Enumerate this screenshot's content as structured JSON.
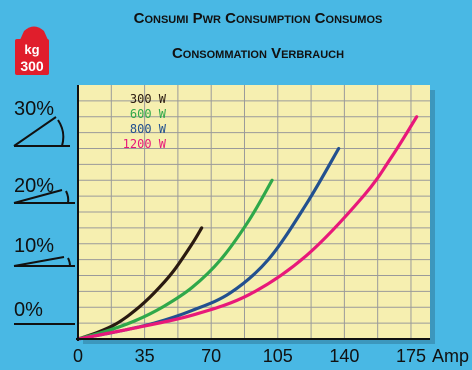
{
  "header": {
    "title_line1": "Consumi  Pwr Consumption  Consumos",
    "title_line2": "Consommation  Verbrauch"
  },
  "badge": {
    "unit": "kg",
    "value": "300"
  },
  "colors": {
    "background": "#49b8e4",
    "plot": "#f6efb0",
    "grid": "#9a9a9a"
  },
  "chart_data": {
    "type": "line",
    "title": "Consumi  Pwr Consumption  Consumos  Consommation  Verbrauch",
    "xlabel": "Amp",
    "ylabel": "",
    "xlim": [
      0,
      185
    ],
    "ylim": [
      0,
      32
    ],
    "x_ticks": [
      "0",
      "35",
      "70",
      "105",
      "140",
      "175"
    ],
    "x_unit": "Amp",
    "y_ticks": [
      "0%",
      "10%",
      "20%",
      "30%"
    ],
    "grid": true,
    "legend_position": "top-left",
    "series": [
      {
        "name": "300  W",
        "color": "#2a1a10",
        "x": [
          0,
          10,
          20,
          30,
          40,
          50,
          60,
          65
        ],
        "y": [
          0,
          0.8,
          1.9,
          3.6,
          5.8,
          8.5,
          12,
          14
        ]
      },
      {
        "name": "600  W",
        "color": "#2fa84a",
        "x": [
          0,
          15,
          30,
          45,
          60,
          75,
          90,
          102
        ],
        "y": [
          0,
          1,
          2.3,
          4.1,
          6.5,
          10,
          15,
          20
        ]
      },
      {
        "name": "800  W",
        "color": "#22508f",
        "x": [
          0,
          20,
          40,
          60,
          80,
          100,
          120,
          137
        ],
        "y": [
          0,
          0.9,
          2,
          3.6,
          5.8,
          10,
          17,
          24
        ]
      },
      {
        "name": "1200  W",
        "color": "#e8187a",
        "x": [
          0,
          30,
          60,
          90,
          120,
          150,
          165,
          178
        ],
        "y": [
          0,
          1.4,
          3,
          5.6,
          10.5,
          18,
          23,
          28
        ]
      }
    ]
  },
  "slope_labels": [
    "30%",
    "20%",
    "10%",
    "0%"
  ]
}
